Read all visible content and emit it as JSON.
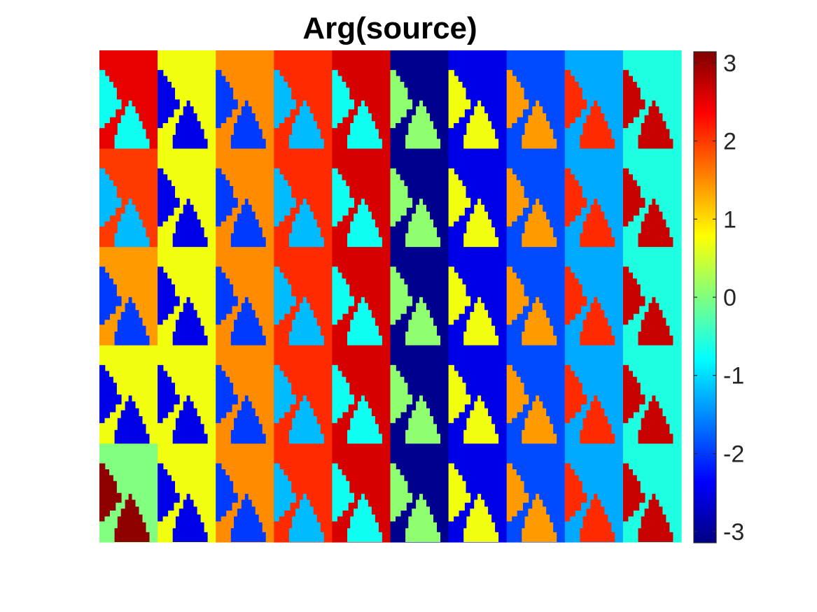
{
  "chart_data": {
    "type": "heatmap",
    "title": "Arg(source)",
    "colormap": "jet",
    "clim": [
      -3.14159,
      3.14159
    ],
    "colorbar": {
      "ticks": [
        3,
        2,
        1,
        0,
        -1,
        -2,
        -3
      ],
      "tick_labels": [
        "3",
        "2",
        "1",
        "0",
        "-1",
        "-2",
        "-3"
      ]
    },
    "grid": false,
    "tile_grid": {
      "rows": 5,
      "cols": 10
    },
    "tile_pattern": "each tile: background phase with a left wedge and a bottom-center dome of the shifted phase",
    "background_phase": [
      [
        2.5,
        0.7,
        1.5,
        2.1,
        2.6,
        -3.05,
        -2.5,
        -1.9,
        -1.3,
        -0.6
      ],
      [
        2.0,
        0.7,
        1.5,
        2.1,
        2.6,
        -3.05,
        -2.5,
        -1.9,
        -1.3,
        -0.6
      ],
      [
        1.4,
        0.7,
        1.5,
        2.1,
        2.6,
        -3.05,
        -2.5,
        -1.9,
        -1.3,
        -0.6
      ],
      [
        0.7,
        0.7,
        1.5,
        2.1,
        2.6,
        -3.05,
        -2.5,
        -1.9,
        -1.3,
        -0.6
      ],
      [
        0.0,
        0.7,
        1.5,
        2.1,
        2.6,
        -3.05,
        -2.5,
        -1.9,
        -1.3,
        -0.6
      ]
    ],
    "shape_phase": [
      [
        -0.7,
        -2.5,
        -2.0,
        -1.2,
        -0.7,
        0.1,
        0.7,
        1.4,
        2.1,
        2.7
      ],
      [
        -1.2,
        -2.5,
        -2.0,
        -1.2,
        -0.7,
        0.1,
        0.7,
        1.4,
        2.1,
        2.7
      ],
      [
        -2.0,
        -2.5,
        -2.0,
        -1.2,
        -0.7,
        0.1,
        0.7,
        1.4,
        2.1,
        2.7
      ],
      [
        -2.5,
        -2.5,
        -2.0,
        -1.2,
        -0.7,
        0.1,
        0.7,
        1.4,
        2.1,
        2.7
      ],
      [
        3.05,
        -2.5,
        -2.0,
        -1.2,
        -0.7,
        0.1,
        0.7,
        1.4,
        2.1,
        2.7
      ]
    ]
  }
}
